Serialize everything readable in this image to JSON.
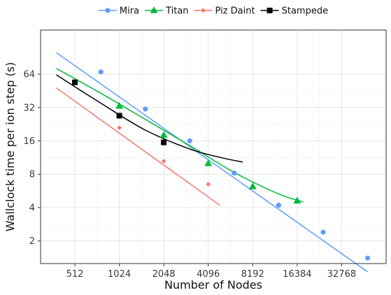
{
  "chart_data": {
    "type": "line",
    "title": "",
    "xlabel": "Number of Nodes",
    "ylabel": "Wallclock time per ion step (s)",
    "x_scale": "log2",
    "y_scale": "log2",
    "x_ticks": [
      512,
      1024,
      2048,
      4096,
      8192,
      16384,
      32768
    ],
    "y_ticks": [
      2,
      4,
      8,
      16,
      32,
      64
    ],
    "xlim": [
      300,
      65536
    ],
    "ylim": [
      1.25,
      160
    ],
    "grid": true,
    "legend_position": "top",
    "series": [
      {
        "name": "Mira",
        "color": "#619CFF",
        "marker": "circle",
        "points": [
          [
            768,
            67
          ],
          [
            1536,
            31
          ],
          [
            3072,
            16
          ],
          [
            6144,
            8.2
          ],
          [
            12288,
            4.2
          ],
          [
            24576,
            2.4
          ],
          [
            49152,
            1.4
          ]
        ],
        "fit": [
          [
            384,
            100
          ],
          [
            49152,
            1.05
          ]
        ]
      },
      {
        "name": "Titan",
        "color": "#00BA38",
        "marker": "triangle",
        "points": [
          [
            1024,
            33
          ],
          [
            2048,
            18
          ],
          [
            4096,
            10
          ],
          [
            8192,
            6.2
          ],
          [
            16384,
            4.6
          ]
        ],
        "fit": [
          [
            384,
            72
          ],
          [
            768,
            43
          ],
          [
            1536,
            25
          ],
          [
            3072,
            14.5
          ],
          [
            6144,
            8.3
          ],
          [
            12288,
            5.3
          ],
          [
            18000,
            4.5
          ]
        ]
      },
      {
        "name": "Piz Daint",
        "color": "#F8766D",
        "marker": "diamond",
        "points": [
          [
            512,
            53
          ],
          [
            1024,
            21
          ],
          [
            2048,
            10.5
          ],
          [
            4096,
            6.5
          ]
        ],
        "fit": [
          [
            384,
            48
          ],
          [
            4900,
            4.2
          ]
        ]
      },
      {
        "name": "Stampede",
        "color": "#000000",
        "marker": "square",
        "points": [
          [
            512,
            54
          ],
          [
            1024,
            27
          ],
          [
            2048,
            15.5
          ]
        ],
        "fit": [
          [
            384,
            63
          ],
          [
            768,
            35
          ],
          [
            1536,
            20
          ],
          [
            3072,
            13.5
          ],
          [
            5000,
            11.3
          ],
          [
            7000,
            10.3
          ]
        ]
      }
    ]
  }
}
